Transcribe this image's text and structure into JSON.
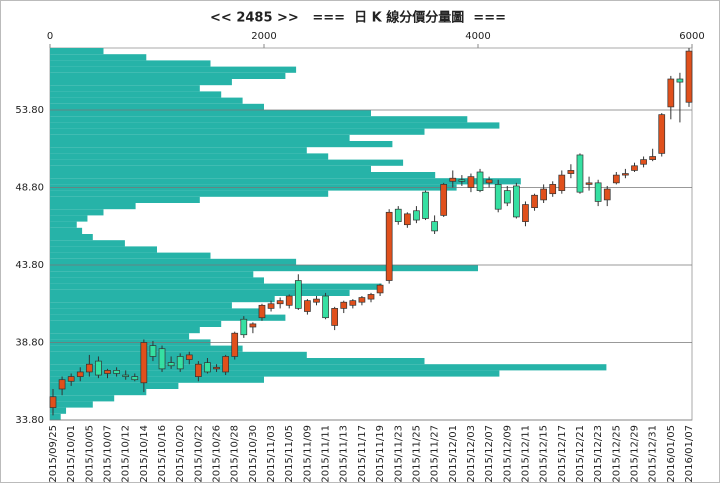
{
  "chart_data": [
    {
      "type": "candlestick",
      "title": "<< 2485 >>   ===  日 K 線分價分量圖  ===",
      "categories": [
        "2015/09/25",
        null,
        "2015/10/01",
        null,
        "2015/10/05",
        null,
        "2015/10/07",
        null,
        "2015/10/12",
        null,
        "2015/10/14",
        null,
        "2015/10/16",
        null,
        "2015/10/20",
        null,
        "2015/10/22",
        null,
        "2015/10/26",
        null,
        "2015/10/28",
        null,
        "2015/10/30",
        null,
        "2015/11/03",
        null,
        "2015/11/05",
        null,
        "2015/11/09",
        null,
        "2015/11/11",
        null,
        "2015/11/13",
        null,
        "2015/11/17",
        null,
        "2015/11/19",
        null,
        "2015/11/23",
        null,
        "2015/11/25",
        null,
        "2015/11/27",
        null,
        "2015/12/01",
        null,
        "2015/12/03",
        null,
        "2015/12/07",
        null,
        "2015/12/09",
        null,
        "2015/12/11",
        null,
        "2015/12/15",
        null,
        "2015/12/17",
        null,
        "2015/12/21",
        null,
        "2015/12/23",
        null,
        "2015/12/25",
        null,
        "2015/12/29",
        null,
        "2015/12/31",
        null,
        "2016/01/05",
        null,
        "2016/01/07"
      ],
      "open": [
        34.6,
        35.8,
        36.3,
        36.6,
        36.9,
        37.6,
        36.8,
        37.0,
        36.7,
        36.6,
        36.2,
        38.6,
        38.4,
        37.5,
        37.9,
        37.7,
        36.6,
        37.5,
        37.1,
        36.9,
        37.9,
        40.3,
        39.8,
        40.4,
        41.0,
        41.3,
        41.2,
        42.8,
        40.8,
        41.4,
        41.8,
        39.9,
        41.0,
        41.2,
        41.4,
        41.6,
        42.0,
        42.8,
        47.4,
        46.4,
        47.3,
        48.5,
        46.6,
        47.0,
        49.2,
        49.3,
        48.8,
        49.8,
        49.1,
        49.0,
        48.6,
        48.9,
        46.6,
        47.5,
        48.0,
        48.4,
        48.6,
        49.7,
        50.9,
        49.0,
        49.1,
        48.0,
        49.1,
        49.6,
        49.9,
        50.3,
        50.6,
        51.0,
        54.0,
        55.8,
        54.3
      ],
      "high": [
        35.8,
        36.6,
        36.8,
        37.2,
        38.0,
        37.9,
        37.1,
        37.2,
        37.0,
        36.8,
        39.0,
        38.9,
        38.6,
        37.9,
        38.1,
        38.2,
        37.6,
        37.8,
        37.4,
        38.0,
        39.5,
        40.5,
        40.1,
        41.3,
        41.5,
        41.7,
        41.9,
        43.2,
        41.6,
        41.8,
        42.0,
        41.1,
        41.5,
        41.6,
        41.8,
        42.0,
        42.6,
        47.4,
        47.6,
        47.2,
        47.6,
        48.6,
        47.0,
        49.1,
        49.9,
        49.6,
        49.7,
        50.0,
        49.5,
        49.3,
        48.9,
        49.1,
        47.9,
        48.4,
        49.0,
        49.2,
        49.9,
        50.3,
        51.0,
        49.5,
        49.3,
        48.9,
        49.8,
        50.0,
        50.4,
        50.8,
        51.3,
        53.6,
        56.0,
        56.2,
        57.8
      ],
      "low": [
        34.1,
        35.4,
        36.0,
        36.3,
        36.6,
        36.5,
        36.5,
        36.6,
        36.4,
        36.3,
        35.6,
        37.6,
        36.9,
        37.1,
        36.9,
        37.4,
        36.3,
        36.8,
        36.9,
        36.7,
        37.7,
        39.1,
        39.4,
        40.2,
        40.8,
        41.0,
        41.0,
        40.9,
        40.6,
        41.2,
        40.3,
        39.6,
        40.7,
        41.0,
        41.2,
        41.4,
        41.8,
        42.6,
        46.4,
        46.2,
        46.5,
        46.7,
        45.8,
        46.9,
        48.8,
        48.9,
        48.5,
        48.5,
        48.8,
        47.2,
        47.6,
        46.8,
        46.3,
        47.3,
        47.8,
        48.2,
        48.4,
        49.4,
        48.4,
        48.6,
        47.6,
        47.6,
        49.0,
        49.4,
        49.8,
        50.1,
        50.5,
        50.8,
        53.2,
        53.0,
        54.0
      ],
      "close": [
        35.3,
        36.4,
        36.6,
        36.9,
        37.4,
        36.7,
        37.0,
        36.8,
        36.6,
        36.4,
        38.8,
        37.9,
        37.1,
        37.3,
        37.1,
        38.0,
        37.4,
        36.9,
        37.2,
        37.9,
        39.4,
        39.3,
        40.0,
        41.2,
        41.3,
        41.5,
        41.8,
        41.0,
        41.5,
        41.6,
        40.4,
        41.0,
        41.4,
        41.5,
        41.7,
        41.9,
        42.5,
        47.2,
        46.6,
        47.1,
        46.7,
        46.8,
        46.0,
        49.0,
        49.4,
        49.2,
        49.5,
        48.6,
        49.3,
        47.4,
        47.8,
        46.9,
        47.7,
        48.3,
        48.7,
        49.0,
        49.6,
        49.9,
        48.5,
        49.1,
        47.9,
        48.7,
        49.6,
        49.7,
        50.2,
        50.6,
        50.8,
        53.5,
        55.8,
        55.6,
        57.6
      ],
      "up_color": "#e0501c",
      "down_color": "#36e0a2",
      "ylim": [
        33.8,
        57.8
      ],
      "yticks": [
        {
          "value": 33.8,
          "label": "33.80"
        },
        {
          "value": 38.8,
          "label": "38.80"
        },
        {
          "value": 43.8,
          "label": "43.80"
        },
        {
          "value": 48.8,
          "label": "48.80"
        },
        {
          "value": 53.8,
          "label": "53.80"
        }
      ],
      "grid": true
    },
    {
      "type": "barh",
      "y": [
        34.0,
        34.4,
        34.8,
        35.2,
        35.6,
        36.0,
        36.4,
        36.8,
        37.2,
        37.6,
        38.0,
        38.4,
        38.8,
        39.2,
        39.6,
        40.0,
        40.4,
        40.8,
        41.2,
        41.6,
        42.0,
        42.4,
        42.8,
        43.2,
        43.6,
        44.0,
        44.4,
        44.8,
        45.2,
        45.6,
        46.0,
        46.4,
        46.8,
        47.2,
        47.6,
        48.0,
        48.4,
        48.8,
        49.2,
        49.6,
        50.0,
        50.4,
        50.8,
        51.2,
        51.6,
        52.0,
        52.4,
        52.8,
        53.2,
        53.6,
        54.0,
        54.4,
        54.8,
        55.2,
        55.6,
        56.0,
        56.4,
        56.8,
        57.2,
        57.6
      ],
      "values": [
        100,
        150,
        400,
        600,
        900,
        1200,
        2000,
        4200,
        5200,
        3500,
        2400,
        1800,
        1500,
        1300,
        1400,
        1600,
        2200,
        2000,
        1700,
        2100,
        2800,
        3100,
        2000,
        1900,
        4000,
        2300,
        1500,
        1000,
        700,
        400,
        300,
        250,
        350,
        500,
        800,
        1400,
        2600,
        3800,
        4400,
        3600,
        3000,
        3300,
        2600,
        2400,
        3200,
        2800,
        3500,
        4200,
        3900,
        3000,
        2000,
        1800,
        1600,
        1400,
        1700,
        2200,
        2300,
        1500,
        900,
        500
      ],
      "color": "#26b3a8",
      "xlim": [
        0,
        6000
      ],
      "xticks": [
        0,
        2000,
        4000,
        6000
      ]
    }
  ]
}
